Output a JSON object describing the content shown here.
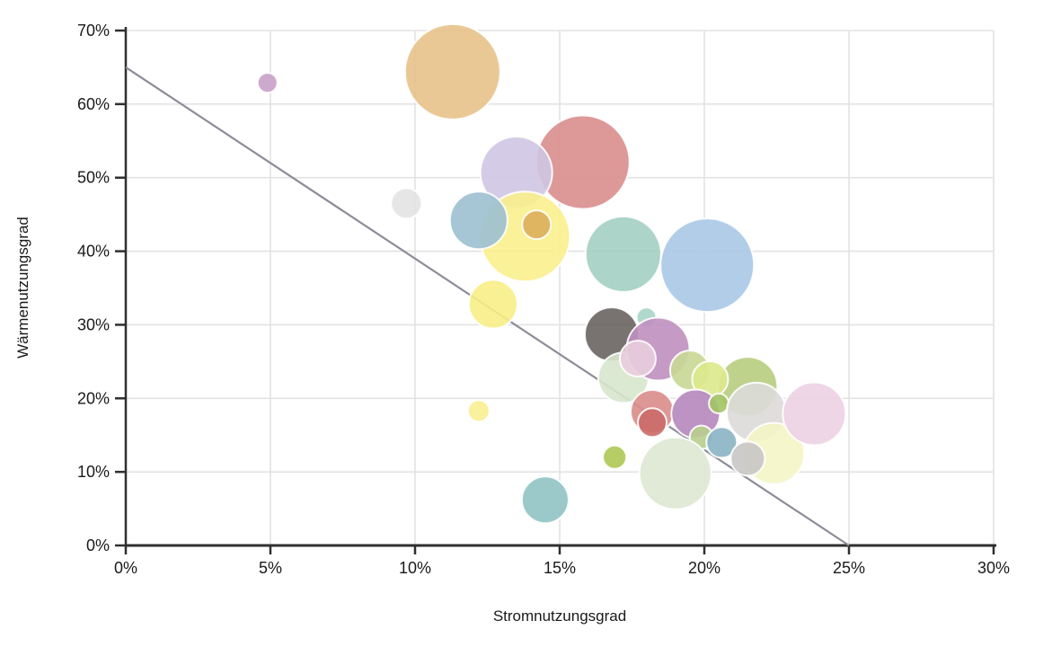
{
  "chart_data": {
    "type": "scatter",
    "title": "",
    "xlabel": "Stromnutzungsgrad",
    "ylabel": "Wärmenutzungsgrad",
    "xlim": [
      0,
      30
    ],
    "ylim": [
      0,
      70
    ],
    "x_ticks": [
      "0%",
      "5%",
      "10%",
      "15%",
      "20%",
      "25%",
      "30%"
    ],
    "y_ticks": [
      "0%",
      "10%",
      "20%",
      "30%",
      "40%",
      "50%",
      "60%",
      "70%"
    ],
    "grid": true,
    "legend": false,
    "background_color": "#ffffff",
    "grid_color": "#e3e3e3",
    "axis_color": "#2f2f2f",
    "tick_text_color": "#1a1a1a",
    "bubble_stroke_color": "#ffffff",
    "trend_line": {
      "from_point": {
        "x": 0,
        "y": 65
      },
      "to_point": {
        "x": 25,
        "y": 0
      },
      "color": "#8d8d98"
    },
    "bubbles": [
      {
        "x": 11.3,
        "y": 64.4,
        "r": 53,
        "color": "#e7c28a"
      },
      {
        "x": 4.9,
        "y": 62.9,
        "r": 11,
        "color": "#c9a0c9"
      },
      {
        "x": 15.8,
        "y": 52.1,
        "r": 52,
        "color": "#d98d8d"
      },
      {
        "x": 13.5,
        "y": 50.7,
        "r": 40,
        "color": "#cfc7e3"
      },
      {
        "x": 9.7,
        "y": 46.5,
        "r": 17,
        "color": "#e3e3e3"
      },
      {
        "x": 13.8,
        "y": 42.0,
        "r": 50,
        "color": "#f9f08d"
      },
      {
        "x": 12.2,
        "y": 44.2,
        "r": 32,
        "color": "#9cbfd0"
      },
      {
        "x": 14.2,
        "y": 43.6,
        "r": 16,
        "color": "#dcae5c"
      },
      {
        "x": 17.2,
        "y": 39.6,
        "r": 42,
        "color": "#a3cfc2"
      },
      {
        "x": 20.1,
        "y": 38.1,
        "r": 52,
        "color": "#a9c8e5"
      },
      {
        "x": 12.7,
        "y": 32.8,
        "r": 27,
        "color": "#f7ee86"
      },
      {
        "x": 18.0,
        "y": 31.0,
        "r": 11,
        "color": "#a8d4c6"
      },
      {
        "x": 16.8,
        "y": 28.7,
        "r": 30,
        "color": "#696461"
      },
      {
        "x": 17.2,
        "y": 22.8,
        "r": 28,
        "color": "#d7e5cd"
      },
      {
        "x": 18.4,
        "y": 26.7,
        "r": 35,
        "color": "#bf90c0"
      },
      {
        "x": 17.7,
        "y": 25.4,
        "r": 20,
        "color": "#e9cddd"
      },
      {
        "x": 19.5,
        "y": 23.8,
        "r": 22,
        "color": "#c8d893"
      },
      {
        "x": 21.5,
        "y": 21.6,
        "r": 33,
        "color": "#b7cd80"
      },
      {
        "x": 20.2,
        "y": 22.6,
        "r": 20,
        "color": "#dde98c"
      },
      {
        "x": 18.2,
        "y": 18.2,
        "r": 24,
        "color": "#d98c89"
      },
      {
        "x": 19.7,
        "y": 17.9,
        "r": 27,
        "color": "#b587bb"
      },
      {
        "x": 20.5,
        "y": 19.3,
        "r": 11,
        "color": "#a2c464"
      },
      {
        "x": 19.9,
        "y": 14.7,
        "r": 13,
        "color": "#b9cf8e"
      },
      {
        "x": 18.2,
        "y": 16.7,
        "r": 16,
        "color": "#cb6a68"
      },
      {
        "x": 21.8,
        "y": 18.1,
        "r": 33,
        "color": "#dcdad8"
      },
      {
        "x": 22.4,
        "y": 12.5,
        "r": 34,
        "color": "#f4f5c5"
      },
      {
        "x": 23.8,
        "y": 17.9,
        "r": 35,
        "color": "#ecd2e4"
      },
      {
        "x": 20.6,
        "y": 14.0,
        "r": 17,
        "color": "#8ab4c4"
      },
      {
        "x": 21.5,
        "y": 11.8,
        "r": 19,
        "color": "#c9c7c5"
      },
      {
        "x": 16.9,
        "y": 12.0,
        "r": 13,
        "color": "#adc853"
      },
      {
        "x": 19.0,
        "y": 9.8,
        "r": 40,
        "color": "#dde8d2"
      },
      {
        "x": 12.2,
        "y": 18.3,
        "r": 12,
        "color": "#f8ef90"
      },
      {
        "x": 14.5,
        "y": 6.2,
        "r": 26,
        "color": "#90c3c3"
      }
    ]
  }
}
